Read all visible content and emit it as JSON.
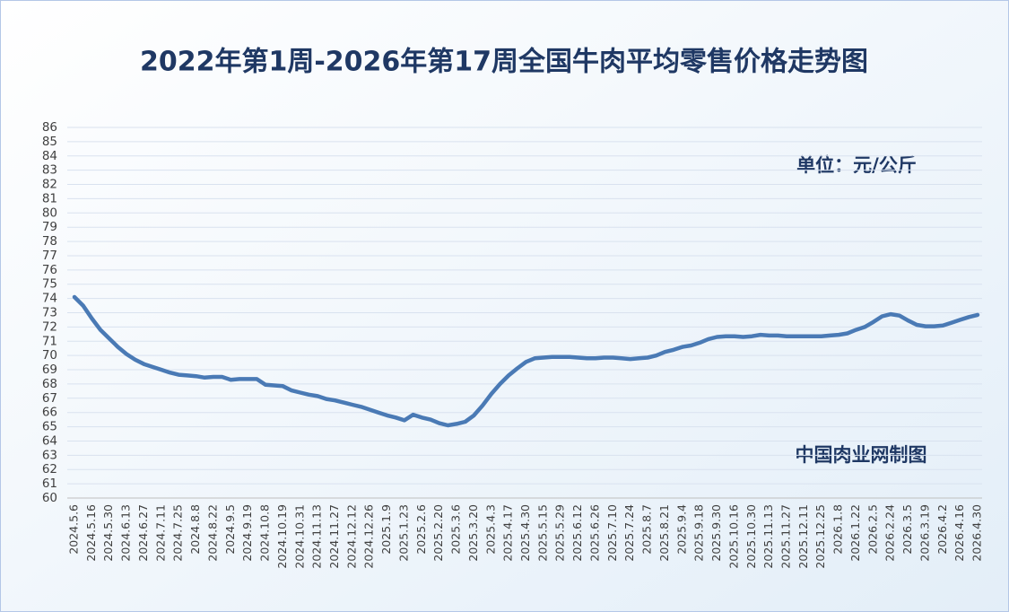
{
  "chart_data": {
    "type": "line",
    "title": "2022年第1周-2026年第17周全国牛肉平均零售价格走势图",
    "annotations": [
      "单位：元/公斤",
      "中国肉业网制图"
    ],
    "categories": [
      "2024.5.6",
      null,
      "2024.5.16",
      null,
      "2024.5.30",
      null,
      "2024.6.13",
      null,
      "2024.6.27",
      null,
      "2024.7.11",
      null,
      "2024.7.25",
      null,
      "2024.8.8",
      null,
      "2024.8.22",
      null,
      "2024.9.5",
      null,
      "2024.9.19",
      null,
      "2024.10.8",
      null,
      "2024.10.19",
      null,
      "2024.10.31",
      null,
      "2024.11.13",
      null,
      "2024.11.27",
      null,
      "2024.12.12",
      null,
      "2024.12.26",
      null,
      "2025.1.9",
      null,
      "2025.1.23",
      null,
      "2025.2.6",
      null,
      "2025.2.20",
      null,
      "2025.3.6",
      null,
      "2025.3.20",
      null,
      "2025.4.3",
      null,
      "2025.4.17",
      null,
      "2025.4.30",
      null,
      "2025.5.15",
      null,
      "2025.5.29",
      null,
      "2025.6.12",
      null,
      "2025.6.26",
      null,
      "2025.7.10",
      null,
      "2025.7.24",
      null,
      "2025.8.7",
      null,
      "2025.8.21",
      null,
      "2025.9.4",
      null,
      "2025.9.18",
      null,
      "2025.9.30",
      null,
      "2025.10.16",
      null,
      "2025.10.30",
      null,
      "2025.11.13",
      null,
      "2025.11.27",
      null,
      "2025.12.11",
      null,
      "2025.12.25",
      null,
      "2026.1.8",
      null,
      "2026.1.22",
      null,
      "2026.2.5",
      null,
      "2026.2.24",
      null,
      "2026.3.5",
      null,
      "2026.3.19",
      null,
      "2026.4.2",
      null,
      "2026.4.16",
      null,
      "2026.4.30"
    ],
    "values": [
      74.1,
      73.5,
      72.6,
      71.8,
      71.2,
      70.6,
      70.1,
      69.7,
      69.4,
      69.2,
      69.0,
      68.8,
      68.65,
      68.6,
      68.55,
      68.45,
      68.5,
      68.5,
      68.3,
      68.35,
      68.35,
      68.35,
      67.95,
      67.9,
      67.85,
      67.55,
      67.4,
      67.25,
      67.15,
      66.95,
      66.85,
      66.7,
      66.55,
      66.4,
      66.2,
      66.0,
      65.8,
      65.65,
      65.45,
      65.85,
      65.65,
      65.5,
      65.25,
      65.1,
      65.2,
      65.35,
      65.8,
      66.5,
      67.3,
      68.0,
      68.6,
      69.1,
      69.55,
      69.8,
      69.85,
      69.9,
      69.9,
      69.9,
      69.85,
      69.8,
      69.8,
      69.85,
      69.85,
      69.8,
      69.75,
      69.8,
      69.85,
      70.0,
      70.25,
      70.4,
      70.6,
      70.7,
      70.9,
      71.15,
      71.3,
      71.35,
      71.35,
      71.3,
      71.35,
      71.45,
      71.4,
      71.4,
      71.35,
      71.35,
      71.35,
      71.35,
      71.35,
      71.4,
      71.45,
      71.55,
      71.8,
      72.0,
      72.35,
      72.75,
      72.9,
      72.8,
      72.45,
      72.15,
      72.05,
      72.05,
      72.1,
      72.3,
      72.5,
      72.7,
      72.85
    ],
    "color": "#4a7ab5",
    "ylim": [
      60,
      86
    ],
    "yticks": [
      60,
      61,
      62,
      63,
      64,
      65,
      66,
      67,
      68,
      69,
      70,
      71,
      72,
      73,
      74,
      75,
      76,
      77,
      78,
      79,
      80,
      81,
      82,
      83,
      84,
      85,
      86
    ],
    "grid": true
  }
}
